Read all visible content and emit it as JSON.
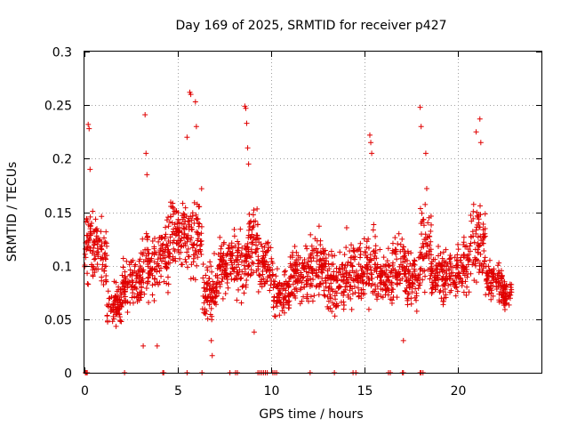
{
  "chart_data": {
    "type": "scatter",
    "title": "Day 169 of 2025, SRMTID for receiver p427",
    "xlabel": "GPS time / hours",
    "ylabel": "SRMTID / TECUs",
    "xlim": [
      0,
      24.5
    ],
    "ylim": [
      0,
      0.3
    ],
    "x_ticks": [
      0,
      5,
      10,
      15,
      20
    ],
    "x_tick_labels": [
      "0",
      "5",
      "10",
      "15",
      "20"
    ],
    "y_ticks": [
      0,
      0.05,
      0.1,
      0.15,
      0.2,
      0.25,
      0.3
    ],
    "y_tick_labels": [
      "0",
      "0.05",
      "0.1",
      "0.15",
      "0.2",
      "0.25",
      "0.3"
    ],
    "grid": true,
    "marker": "plus",
    "color": "#e00000",
    "series": [
      {
        "name": "SRMTID",
        "segments": [
          {
            "x0": 0.0,
            "x1": 0.45,
            "base": 0.12,
            "amp": 0.05
          },
          {
            "x0": 0.45,
            "x1": 1.2,
            "base": 0.115,
            "amp": 0.045
          },
          {
            "x0": 1.2,
            "x1": 2.0,
            "base": 0.065,
            "amp": 0.025
          },
          {
            "x0": 2.0,
            "x1": 3.1,
            "base": 0.085,
            "amp": 0.035
          },
          {
            "x0": 3.1,
            "x1": 3.9,
            "base": 0.1,
            "amp": 0.05
          },
          {
            "x0": 3.9,
            "x1": 4.6,
            "base": 0.11,
            "amp": 0.045
          },
          {
            "x0": 4.6,
            "x1": 6.3,
            "base": 0.13,
            "amp": 0.05
          },
          {
            "x0": 6.3,
            "x1": 7.1,
            "base": 0.075,
            "amp": 0.04
          },
          {
            "x0": 7.1,
            "x1": 8.8,
            "base": 0.1,
            "amp": 0.04
          },
          {
            "x0": 8.8,
            "x1": 9.3,
            "base": 0.12,
            "amp": 0.05
          },
          {
            "x0": 9.3,
            "x1": 10.1,
            "base": 0.1,
            "amp": 0.035
          },
          {
            "x0": 10.1,
            "x1": 11.0,
            "base": 0.075,
            "amp": 0.03
          },
          {
            "x0": 11.0,
            "x1": 12.0,
            "base": 0.09,
            "amp": 0.035
          },
          {
            "x0": 12.0,
            "x1": 13.0,
            "base": 0.1,
            "amp": 0.045
          },
          {
            "x0": 13.0,
            "x1": 14.0,
            "base": 0.085,
            "amp": 0.04
          },
          {
            "x0": 14.0,
            "x1": 15.0,
            "base": 0.095,
            "amp": 0.045
          },
          {
            "x0": 15.0,
            "x1": 15.7,
            "base": 0.1,
            "amp": 0.05
          },
          {
            "x0": 15.7,
            "x1": 16.5,
            "base": 0.085,
            "amp": 0.035
          },
          {
            "x0": 16.5,
            "x1": 17.2,
            "base": 0.1,
            "amp": 0.04
          },
          {
            "x0": 17.2,
            "x1": 18.0,
            "base": 0.085,
            "amp": 0.035
          },
          {
            "x0": 18.0,
            "x1": 18.6,
            "base": 0.12,
            "amp": 0.05
          },
          {
            "x0": 18.6,
            "x1": 20.0,
            "base": 0.09,
            "amp": 0.035
          },
          {
            "x0": 20.0,
            "x1": 20.7,
            "base": 0.1,
            "amp": 0.035
          },
          {
            "x0": 20.7,
            "x1": 21.5,
            "base": 0.12,
            "amp": 0.05
          },
          {
            "x0": 21.5,
            "x1": 22.4,
            "base": 0.085,
            "amp": 0.03
          },
          {
            "x0": 22.4,
            "x1": 22.9,
            "base": 0.075,
            "amp": 0.025
          }
        ],
        "peaks": [
          {
            "x": 0.2,
            "y": 0.232
          },
          {
            "x": 0.25,
            "y": 0.228
          },
          {
            "x": 0.3,
            "y": 0.19
          },
          {
            "x": 3.25,
            "y": 0.241
          },
          {
            "x": 3.3,
            "y": 0.205
          },
          {
            "x": 3.35,
            "y": 0.185
          },
          {
            "x": 5.65,
            "y": 0.262
          },
          {
            "x": 5.7,
            "y": 0.26
          },
          {
            "x": 5.95,
            "y": 0.253
          },
          {
            "x": 6.0,
            "y": 0.23
          },
          {
            "x": 5.5,
            "y": 0.22
          },
          {
            "x": 8.6,
            "y": 0.249
          },
          {
            "x": 8.65,
            "y": 0.247
          },
          {
            "x": 8.7,
            "y": 0.233
          },
          {
            "x": 8.75,
            "y": 0.21
          },
          {
            "x": 8.8,
            "y": 0.195
          },
          {
            "x": 15.3,
            "y": 0.222
          },
          {
            "x": 15.35,
            "y": 0.215
          },
          {
            "x": 15.4,
            "y": 0.205
          },
          {
            "x": 18.0,
            "y": 0.248
          },
          {
            "x": 18.05,
            "y": 0.23
          },
          {
            "x": 18.3,
            "y": 0.205
          },
          {
            "x": 18.35,
            "y": 0.172
          },
          {
            "x": 21.0,
            "y": 0.225
          },
          {
            "x": 21.2,
            "y": 0.237
          },
          {
            "x": 21.25,
            "y": 0.215
          },
          {
            "x": 6.85,
            "y": 0.016
          },
          {
            "x": 6.8,
            "y": 0.03
          },
          {
            "x": 3.9,
            "y": 0.025
          },
          {
            "x": 3.15,
            "y": 0.025
          },
          {
            "x": 17.1,
            "y": 0.03
          },
          {
            "x": 9.1,
            "y": 0.038
          }
        ],
        "zero_x": [
          0.05,
          0.1,
          0.15,
          2.15,
          4.2,
          4.25,
          5.5,
          6.3,
          7.8,
          8.1,
          8.2,
          9.3,
          9.4,
          9.5,
          9.6,
          9.7,
          9.8,
          10.1,
          10.2,
          10.3,
          12.1,
          13.4,
          14.4,
          14.55,
          16.3,
          16.4,
          17.05,
          17.1,
          18.0,
          18.05,
          18.15
        ]
      }
    ]
  }
}
